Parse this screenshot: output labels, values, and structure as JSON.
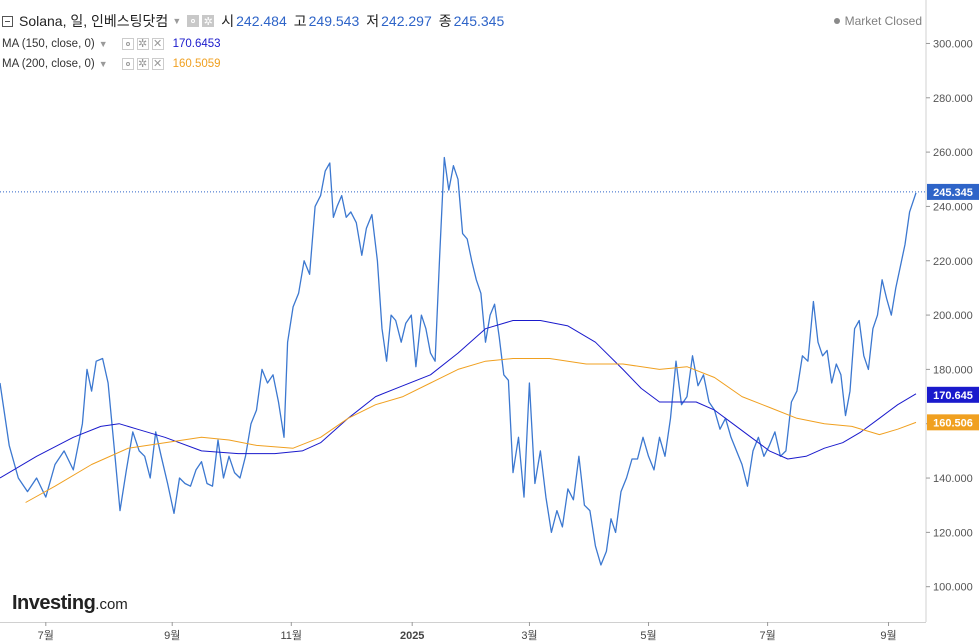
{
  "header": {
    "title": "Solana, 일, 인베스팅닷컴",
    "ohlc": [
      {
        "label": "시",
        "value": "242.484"
      },
      {
        "label": "고",
        "value": "249.543"
      },
      {
        "label": "저",
        "value": "242.297"
      },
      {
        "label": "종",
        "value": "245.345"
      }
    ],
    "market_status": "Market Closed"
  },
  "indicators": [
    {
      "label": "MA (150, close, 0)",
      "value": "170.6453",
      "color": "#1a1acc"
    },
    {
      "label": "MA (200, close, 0)",
      "value": "160.5059",
      "color": "#f0a020"
    }
  ],
  "brand": {
    "name": "Investing",
    "suffix": ".com"
  },
  "chart_data": {
    "type": "line",
    "y_ticks": [
      "100.000",
      "120.000",
      "140.000",
      "160.000",
      "180.000",
      "200.000",
      "220.000",
      "240.000",
      "260.000",
      "280.000",
      "300.000"
    ],
    "ylim": [
      87,
      316
    ],
    "x_ticks": [
      {
        "label": "7월",
        "t": 0.05
      },
      {
        "label": "9월",
        "t": 0.188
      },
      {
        "label": "11월",
        "t": 0.318
      },
      {
        "label": "2025",
        "t": 0.45
      },
      {
        "label": "3월",
        "t": 0.578
      },
      {
        "label": "5월",
        "t": 0.708
      },
      {
        "label": "7월",
        "t": 0.838
      },
      {
        "label": "9월",
        "t": 0.97
      }
    ],
    "last_price": {
      "label": "245.345",
      "value": 245.345,
      "color": "#2e64c8"
    },
    "ma_badges": [
      {
        "label": "170.645",
        "value": 170.645,
        "color": "#1a1acc"
      },
      {
        "label": "160.506",
        "value": 160.506,
        "color": "#f0a020"
      }
    ],
    "series": [
      {
        "color": "#3c78d0",
        "points": [
          [
            0.0,
            175
          ],
          [
            0.01,
            152
          ],
          [
            0.02,
            140
          ],
          [
            0.03,
            135
          ],
          [
            0.04,
            140
          ],
          [
            0.05,
            133
          ],
          [
            0.06,
            145
          ],
          [
            0.07,
            150
          ],
          [
            0.08,
            143
          ],
          [
            0.09,
            160
          ],
          [
            0.095,
            180
          ],
          [
            0.1,
            172
          ],
          [
            0.105,
            183
          ],
          [
            0.112,
            184
          ],
          [
            0.118,
            175
          ],
          [
            0.125,
            150
          ],
          [
            0.131,
            128
          ],
          [
            0.138,
            143
          ],
          [
            0.145,
            157
          ],
          [
            0.152,
            150
          ],
          [
            0.158,
            148
          ],
          [
            0.164,
            140
          ],
          [
            0.17,
            157
          ],
          [
            0.176,
            148
          ],
          [
            0.183,
            138
          ],
          [
            0.19,
            127
          ],
          [
            0.196,
            140
          ],
          [
            0.202,
            138
          ],
          [
            0.208,
            137
          ],
          [
            0.214,
            143
          ],
          [
            0.22,
            146
          ],
          [
            0.226,
            138
          ],
          [
            0.232,
            137
          ],
          [
            0.238,
            154
          ],
          [
            0.244,
            140
          ],
          [
            0.25,
            148
          ],
          [
            0.256,
            142
          ],
          [
            0.262,
            140
          ],
          [
            0.268,
            148
          ],
          [
            0.274,
            160
          ],
          [
            0.28,
            165
          ],
          [
            0.286,
            180
          ],
          [
            0.292,
            175
          ],
          [
            0.298,
            178
          ],
          [
            0.304,
            168
          ],
          [
            0.31,
            155
          ],
          [
            0.314,
            190
          ],
          [
            0.32,
            203
          ],
          [
            0.326,
            208
          ],
          [
            0.332,
            220
          ],
          [
            0.338,
            215
          ],
          [
            0.344,
            240
          ],
          [
            0.35,
            244
          ],
          [
            0.355,
            253
          ],
          [
            0.36,
            256
          ],
          [
            0.364,
            236
          ],
          [
            0.368,
            240
          ],
          [
            0.373,
            244
          ],
          [
            0.378,
            236
          ],
          [
            0.383,
            238
          ],
          [
            0.389,
            234
          ],
          [
            0.395,
            222
          ],
          [
            0.4,
            232
          ],
          [
            0.406,
            237
          ],
          [
            0.412,
            220
          ],
          [
            0.417,
            195
          ],
          [
            0.422,
            183
          ],
          [
            0.427,
            200
          ],
          [
            0.432,
            198
          ],
          [
            0.438,
            190
          ],
          [
            0.443,
            197
          ],
          [
            0.449,
            200
          ],
          [
            0.454,
            181
          ],
          [
            0.46,
            200
          ],
          [
            0.465,
            195
          ],
          [
            0.47,
            186
          ],
          [
            0.475,
            183
          ],
          [
            0.48,
            222
          ],
          [
            0.485,
            258
          ],
          [
            0.49,
            246
          ],
          [
            0.495,
            255
          ],
          [
            0.5,
            250
          ],
          [
            0.505,
            230
          ],
          [
            0.51,
            228
          ],
          [
            0.515,
            220
          ],
          [
            0.52,
            213
          ],
          [
            0.525,
            208
          ],
          [
            0.53,
            190
          ],
          [
            0.535,
            200
          ],
          [
            0.54,
            204
          ],
          [
            0.545,
            192
          ],
          [
            0.55,
            178
          ],
          [
            0.555,
            176
          ],
          [
            0.56,
            142
          ],
          [
            0.566,
            155
          ],
          [
            0.572,
            133
          ],
          [
            0.578,
            175
          ],
          [
            0.584,
            138
          ],
          [
            0.59,
            150
          ],
          [
            0.596,
            133
          ],
          [
            0.602,
            120
          ],
          [
            0.608,
            128
          ],
          [
            0.614,
            122
          ],
          [
            0.62,
            136
          ],
          [
            0.626,
            132
          ],
          [
            0.632,
            148
          ],
          [
            0.638,
            130
          ],
          [
            0.644,
            128
          ],
          [
            0.65,
            115
          ],
          [
            0.656,
            108
          ],
          [
            0.662,
            113
          ],
          [
            0.667,
            125
          ],
          [
            0.672,
            120
          ],
          [
            0.678,
            135
          ],
          [
            0.684,
            140
          ],
          [
            0.69,
            147
          ],
          [
            0.696,
            147
          ],
          [
            0.702,
            155
          ],
          [
            0.708,
            148
          ],
          [
            0.714,
            143
          ],
          [
            0.72,
            155
          ],
          [
            0.726,
            148
          ],
          [
            0.732,
            162
          ],
          [
            0.738,
            183
          ],
          [
            0.744,
            167
          ],
          [
            0.75,
            170
          ],
          [
            0.756,
            185
          ],
          [
            0.762,
            174
          ],
          [
            0.768,
            178
          ],
          [
            0.774,
            168
          ],
          [
            0.78,
            165
          ],
          [
            0.786,
            158
          ],
          [
            0.792,
            162
          ],
          [
            0.798,
            155
          ],
          [
            0.804,
            150
          ],
          [
            0.81,
            145
          ],
          [
            0.816,
            137
          ],
          [
            0.822,
            150
          ],
          [
            0.828,
            155
          ],
          [
            0.834,
            148
          ],
          [
            0.84,
            152
          ],
          [
            0.846,
            157
          ],
          [
            0.852,
            148
          ],
          [
            0.858,
            150
          ],
          [
            0.864,
            168
          ],
          [
            0.87,
            172
          ],
          [
            0.876,
            185
          ],
          [
            0.882,
            183
          ],
          [
            0.888,
            205
          ],
          [
            0.893,
            190
          ],
          [
            0.898,
            185
          ],
          [
            0.903,
            187
          ],
          [
            0.908,
            175
          ],
          [
            0.913,
            182
          ],
          [
            0.918,
            178
          ],
          [
            0.923,
            163
          ],
          [
            0.928,
            172
          ],
          [
            0.933,
            195
          ],
          [
            0.938,
            198
          ],
          [
            0.943,
            185
          ],
          [
            0.948,
            180
          ],
          [
            0.953,
            195
          ],
          [
            0.958,
            200
          ],
          [
            0.963,
            213
          ],
          [
            0.968,
            206
          ],
          [
            0.973,
            200
          ],
          [
            0.978,
            210
          ],
          [
            0.983,
            218
          ],
          [
            0.988,
            226
          ],
          [
            0.993,
            238
          ],
          [
            1.0,
            245
          ]
        ]
      },
      {
        "color": "#1a1acc",
        "points": [
          [
            0.0,
            140
          ],
          [
            0.04,
            148
          ],
          [
            0.08,
            155
          ],
          [
            0.11,
            159
          ],
          [
            0.13,
            160
          ],
          [
            0.15,
            158
          ],
          [
            0.18,
            155
          ],
          [
            0.22,
            150
          ],
          [
            0.26,
            149
          ],
          [
            0.3,
            149
          ],
          [
            0.33,
            150
          ],
          [
            0.35,
            153
          ],
          [
            0.38,
            162
          ],
          [
            0.41,
            170
          ],
          [
            0.44,
            174
          ],
          [
            0.47,
            178
          ],
          [
            0.5,
            186
          ],
          [
            0.53,
            195
          ],
          [
            0.56,
            198
          ],
          [
            0.59,
            198
          ],
          [
            0.62,
            196
          ],
          [
            0.65,
            190
          ],
          [
            0.68,
            180
          ],
          [
            0.7,
            173
          ],
          [
            0.72,
            168
          ],
          [
            0.74,
            168
          ],
          [
            0.76,
            168
          ],
          [
            0.78,
            165
          ],
          [
            0.8,
            160
          ],
          [
            0.82,
            155
          ],
          [
            0.84,
            150
          ],
          [
            0.86,
            147
          ],
          [
            0.88,
            148
          ],
          [
            0.9,
            151
          ],
          [
            0.92,
            153
          ],
          [
            0.94,
            157
          ],
          [
            0.96,
            162
          ],
          [
            0.98,
            167
          ],
          [
            1.0,
            171
          ]
        ]
      },
      {
        "color": "#f0a020",
        "points": [
          [
            0.028,
            131
          ],
          [
            0.06,
            137
          ],
          [
            0.1,
            145
          ],
          [
            0.14,
            151
          ],
          [
            0.18,
            153
          ],
          [
            0.22,
            155
          ],
          [
            0.25,
            154
          ],
          [
            0.28,
            152
          ],
          [
            0.32,
            151
          ],
          [
            0.35,
            155
          ],
          [
            0.38,
            162
          ],
          [
            0.41,
            167
          ],
          [
            0.44,
            170
          ],
          [
            0.47,
            175
          ],
          [
            0.5,
            180
          ],
          [
            0.53,
            183
          ],
          [
            0.56,
            184
          ],
          [
            0.6,
            184
          ],
          [
            0.64,
            182
          ],
          [
            0.68,
            182
          ],
          [
            0.72,
            180
          ],
          [
            0.75,
            181
          ],
          [
            0.78,
            177
          ],
          [
            0.81,
            170
          ],
          [
            0.84,
            166
          ],
          [
            0.87,
            162
          ],
          [
            0.9,
            160
          ],
          [
            0.93,
            159
          ],
          [
            0.96,
            156
          ],
          [
            0.98,
            158
          ],
          [
            1.0,
            160.5
          ]
        ]
      }
    ]
  }
}
